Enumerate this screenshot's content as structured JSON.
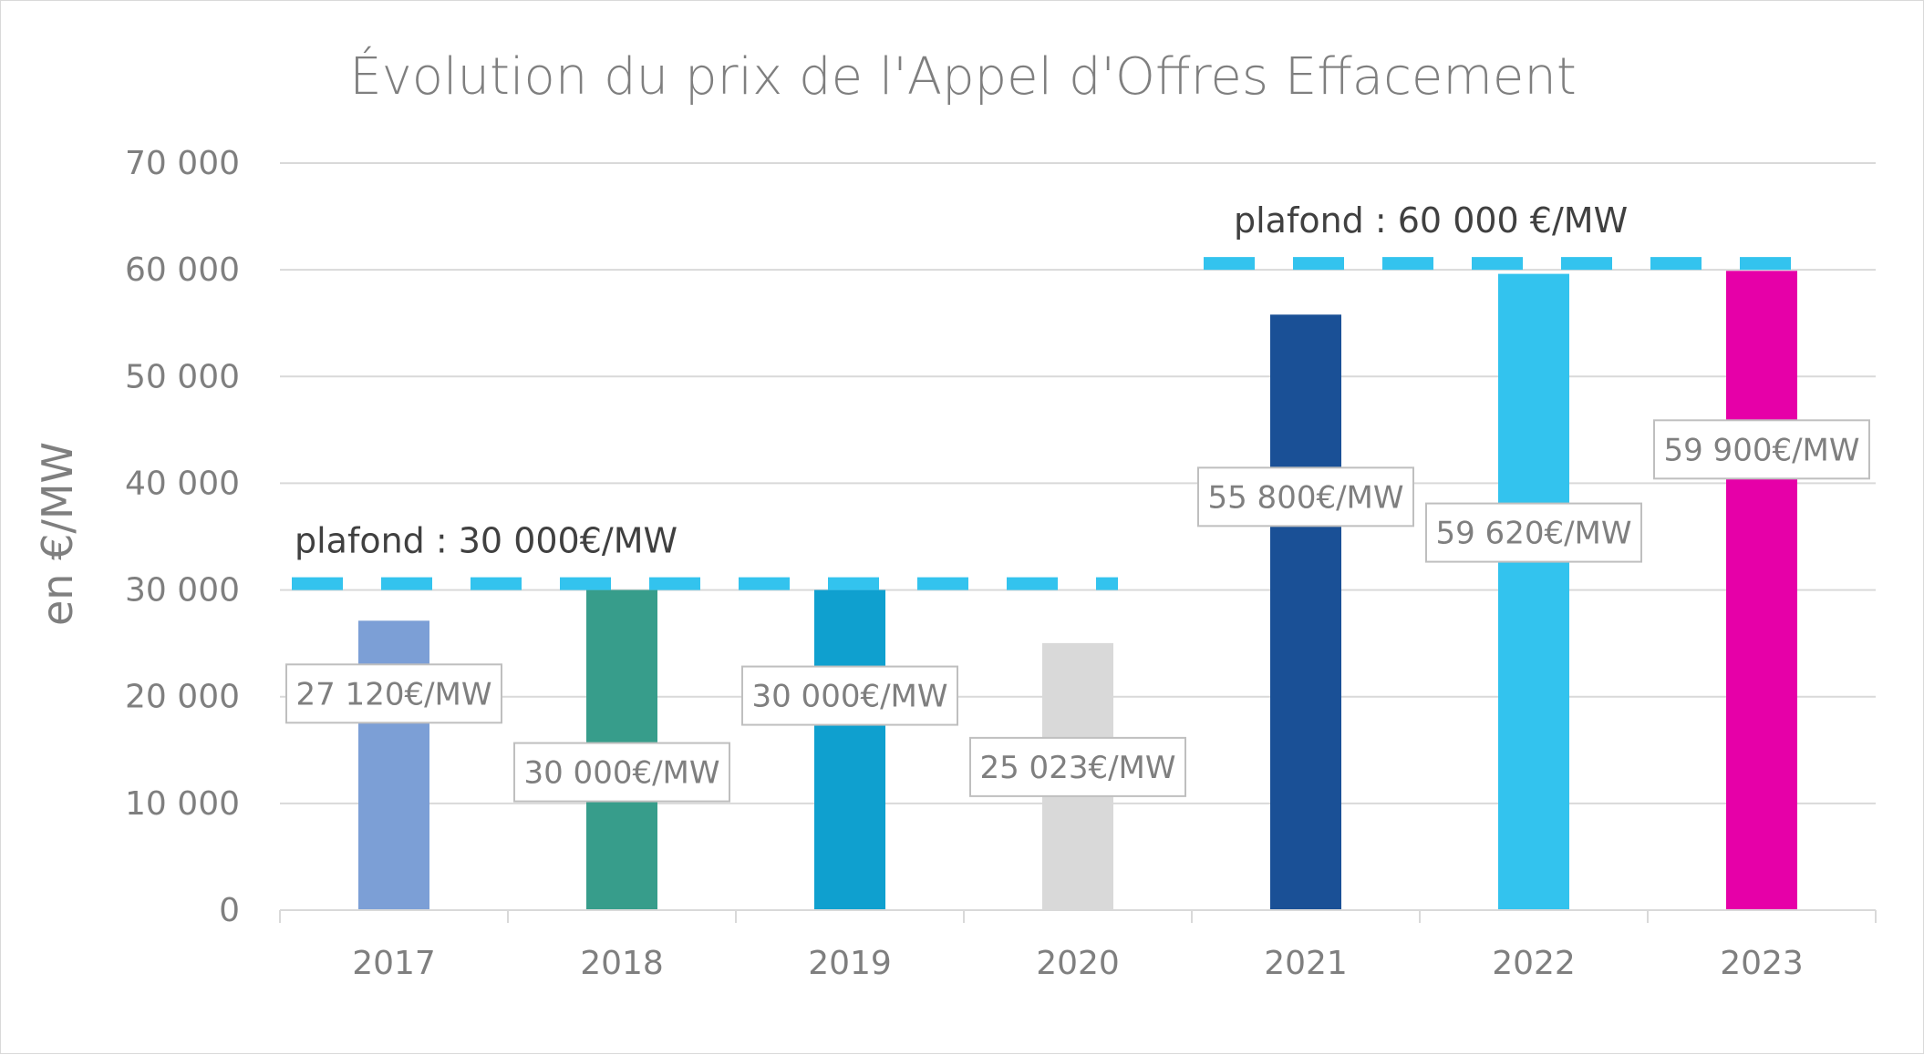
{
  "chart_data": {
    "type": "bar",
    "title": "Évolution du prix de l'Appel d'Offres Effacement",
    "xlabel": "",
    "ylabel": "en €/MW",
    "ylim": [
      0,
      70000
    ],
    "yticks": [
      0,
      10000,
      20000,
      30000,
      40000,
      50000,
      60000,
      70000
    ],
    "ytick_labels": [
      "0",
      "10 000",
      "20 000",
      "30 000",
      "40 000",
      "50 000",
      "60 000",
      "70 000"
    ],
    "grid": true,
    "categories": [
      "2017",
      "2018",
      "2019",
      "2020",
      "2021",
      "2022",
      "2023"
    ],
    "values": [
      27120,
      30000,
      30000,
      25023,
      55800,
      59620,
      59900
    ],
    "colors": [
      "#7c9fd6",
      "#379d8b",
      "#0fa0cf",
      "#d9d9d9",
      "#1a5096",
      "#33c3ee",
      "#e600a8"
    ],
    "data_labels": [
      "27 120€/MW",
      "30 000€/MW",
      "30 000€/MW",
      "25 023€/MW",
      "55 800€/MW",
      "59 620€/MW",
      "59 900€/MW"
    ],
    "caps": [
      {
        "label": "plafond : 30 000€/MW",
        "value": 30000,
        "from_category": "2017",
        "to_category": "2020",
        "color": "#33c3ee"
      },
      {
        "label": "plafond : 60 000 €/MW",
        "value": 60000,
        "from_category": "2021",
        "to_category": "2023",
        "color": "#33c3ee"
      }
    ]
  }
}
